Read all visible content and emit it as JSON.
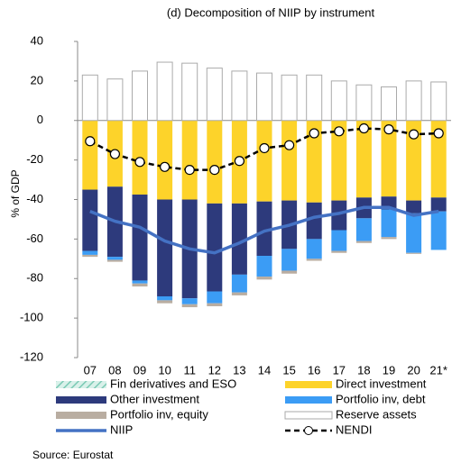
{
  "chart_data": {
    "type": "bar",
    "stacked": true,
    "title": "(d) Decomposition of NIIP by instrument",
    "y_label": "% of GDP",
    "source": "Source: Eurostat",
    "categories": [
      "07",
      "08",
      "09",
      "10",
      "11",
      "12",
      "13",
      "14",
      "15",
      "16",
      "17",
      "18",
      "19",
      "20",
      "21*"
    ],
    "ylim": [
      -120,
      40
    ],
    "yticks": [
      -120,
      -100,
      -80,
      -60,
      -40,
      -20,
      0,
      20,
      40
    ],
    "legend": "bottom",
    "series": [
      {
        "name": "Fin derivatives and ESO",
        "type": "bar",
        "color": "#9ad6c6",
        "hatch": true,
        "values": [
          0,
          0,
          0,
          0,
          0,
          0,
          0,
          0,
          0,
          0,
          0,
          0,
          0,
          0,
          0
        ]
      },
      {
        "name": "Direct investment",
        "type": "bar",
        "color": "#fdd32a",
        "values": [
          -35,
          -33.5,
          -37.5,
          -40,
          -40,
          -42,
          -42,
          -41,
          -40.5,
          -41.5,
          -40.5,
          -39,
          -38.5,
          -40.5,
          -39
        ]
      },
      {
        "name": "Other investment",
        "type": "bar",
        "color": "#2d3a7c",
        "values": [
          -31,
          -35.5,
          -43.5,
          -49,
          -50,
          -44.5,
          -36,
          -27.5,
          -24.5,
          -18.5,
          -15,
          -10.5,
          -6.5,
          -6.5,
          -7
        ]
      },
      {
        "name": "Portfolio inv, debt",
        "type": "bar",
        "color": "#3b9cf5",
        "values": [
          -2,
          -1.5,
          -1.5,
          -2,
          -3,
          -6,
          -9,
          -10.5,
          -11,
          -10,
          -10.5,
          -11.5,
          -14,
          -20,
          -19.5
        ]
      },
      {
        "name": "Portfolio inv, equity",
        "type": "bar",
        "color": "#b9ada1",
        "values": [
          -1,
          -1,
          -1.5,
          -1.5,
          -1.5,
          -1.5,
          -1.5,
          -1.5,
          -1.5,
          -1,
          -1,
          -1,
          -1,
          -0.5,
          0
        ]
      },
      {
        "name": "Reserve assets",
        "type": "bar",
        "color": "#ffffff",
        "values": [
          23,
          21,
          25,
          29.5,
          29,
          26.5,
          25,
          24,
          23,
          23,
          20,
          18,
          17,
          20,
          19.5
        ]
      },
      {
        "name": "NIIP",
        "type": "line",
        "color": "#4472c4",
        "values": [
          -46,
          -51,
          -54,
          -61,
          -65,
          -67,
          -62,
          -56,
          -53,
          -49,
          -47,
          -44,
          -44,
          -48,
          -46
        ]
      },
      {
        "name": "NENDI",
        "type": "line",
        "color": "#000000",
        "dashed": true,
        "marker": "circle",
        "values": [
          -10.5,
          -17,
          -21,
          -23.5,
          -25,
          -25,
          -20.5,
          -14,
          -12.5,
          -6.5,
          -5.5,
          -4,
          -4.5,
          -7,
          -6.5
        ]
      }
    ]
  }
}
